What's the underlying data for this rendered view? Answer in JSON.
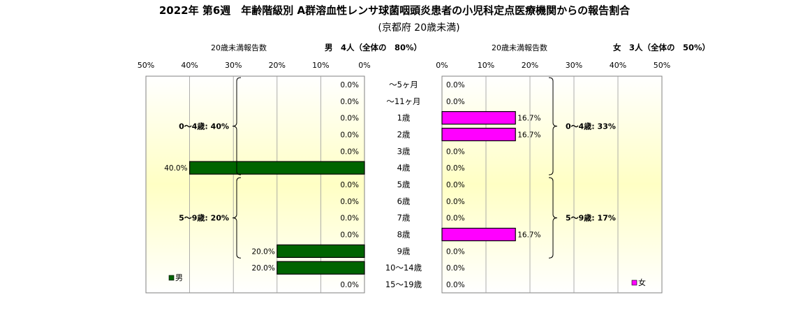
{
  "title": "2022年 第6週　年齢階級別 A群溶血性レンサ球菌咽頭炎患者の小児科定点医療機関からの報告割合",
  "subtitle": "(京都府 20歳未満)",
  "categories": [
    "～5ヶ月",
    "～11ヶ月",
    "1歳",
    "2歳",
    "3歳",
    "4歳",
    "5歳",
    "6歳",
    "7歳",
    "8歳",
    "9歳",
    "10～14歳",
    "15～19歳"
  ],
  "male": {
    "header_label": "20歳未満報告数",
    "header_stat": "男　4人（全体の　80%）",
    "legend": "男",
    "color": "#006400",
    "groups": [
      {
        "label": "0～4歳: 40%",
        "from": 0,
        "to": 5
      },
      {
        "label": "5～9歳: 20%",
        "from": 6,
        "to": 10
      }
    ]
  },
  "female": {
    "header_label": "20歳未満報告数",
    "header_stat": "女　3人（全体の　50%）",
    "legend": "女",
    "color": "#ff00ff",
    "groups": [
      {
        "label": "0～4歳: 33%",
        "from": 0,
        "to": 5
      },
      {
        "label": "5～9歳: 17%",
        "from": 6,
        "to": 10
      }
    ]
  },
  "chart_data": {
    "type": "bar",
    "orientation": "horizontal-butterfly",
    "categories": [
      "～5ヶ月",
      "～11ヶ月",
      "1歳",
      "2歳",
      "3歳",
      "4歳",
      "5歳",
      "6歳",
      "7歳",
      "8歳",
      "9歳",
      "10～14歳",
      "15～19歳"
    ],
    "series": [
      {
        "name": "男",
        "values": [
          0.0,
          0.0,
          0.0,
          0.0,
          0.0,
          40.0,
          0.0,
          0.0,
          0.0,
          0.0,
          20.0,
          20.0,
          0.0
        ],
        "labels": [
          "0.0%",
          "0.0%",
          "0.0%",
          "0.0%",
          "0.0%",
          "40.0%",
          "0.0%",
          "0.0%",
          "0.0%",
          "0.0%",
          "20.0%",
          "20.0%",
          "0.0%"
        ]
      },
      {
        "name": "女",
        "values": [
          0.0,
          0.0,
          16.7,
          16.7,
          0.0,
          0.0,
          0.0,
          0.0,
          0.0,
          16.7,
          0.0,
          0.0,
          0.0
        ],
        "labels": [
          "0.0%",
          "0.0%",
          "16.7%",
          "16.7%",
          "0.0%",
          "0.0%",
          "0.0%",
          "0.0%",
          "0.0%",
          "16.7%",
          "0.0%",
          "0.0%",
          "0.0%"
        ]
      }
    ],
    "xlim": [
      0,
      50
    ],
    "xticks": [
      "0%",
      "10%",
      "20%",
      "30%",
      "40%",
      "50%"
    ],
    "grid": true,
    "legend_position": "bottom-left / bottom-right"
  }
}
